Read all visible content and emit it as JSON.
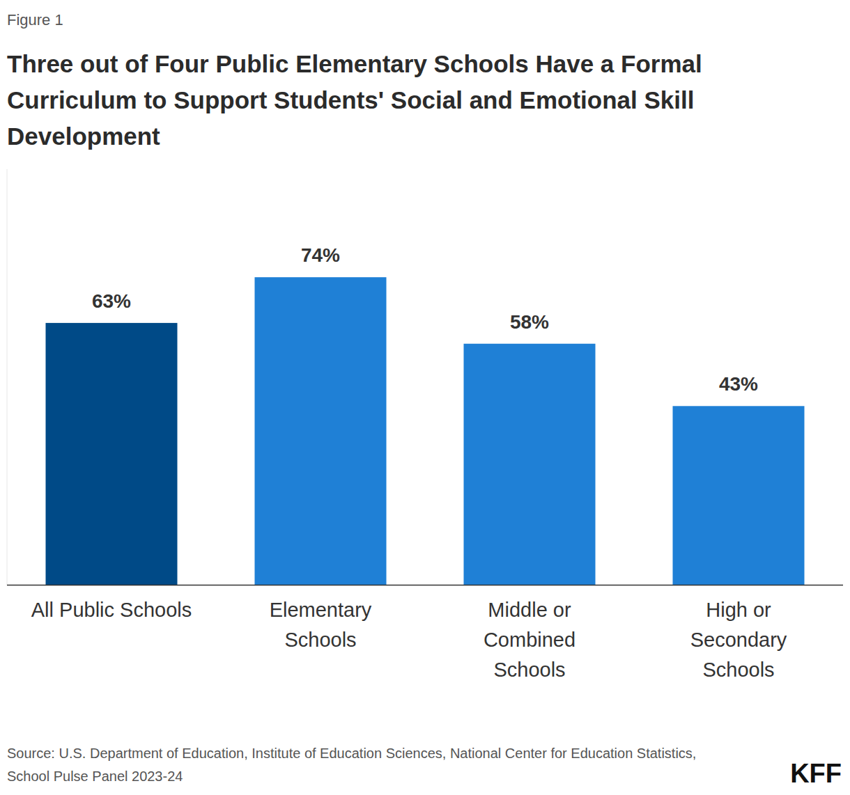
{
  "chart_data": {
    "type": "bar",
    "figure_label": "Figure 1",
    "title": "Three out of Four Public Elementary Schools Have a Formal Curriculum to Support Students' Social and Emotional Skill Development",
    "categories": [
      "All Public Schools",
      "Elementary Schools",
      "Middle or Combined Schools",
      "High or Secondary Schools"
    ],
    "values": [
      63,
      74,
      58,
      43
    ],
    "value_labels": [
      "63%",
      "74%",
      "58%",
      "43%"
    ],
    "colors": [
      "#004a87",
      "#1f80d6",
      "#1f80d6",
      "#1f80d6"
    ],
    "ylim": [
      0,
      100
    ],
    "tick_labels": "x",
    "grid": false,
    "data_labels": true,
    "source": "Source: U.S. Department of Education, Institute of Education Sciences, National Center for Education Statistics, School Pulse Panel 2023-24",
    "logo": "KFF"
  }
}
